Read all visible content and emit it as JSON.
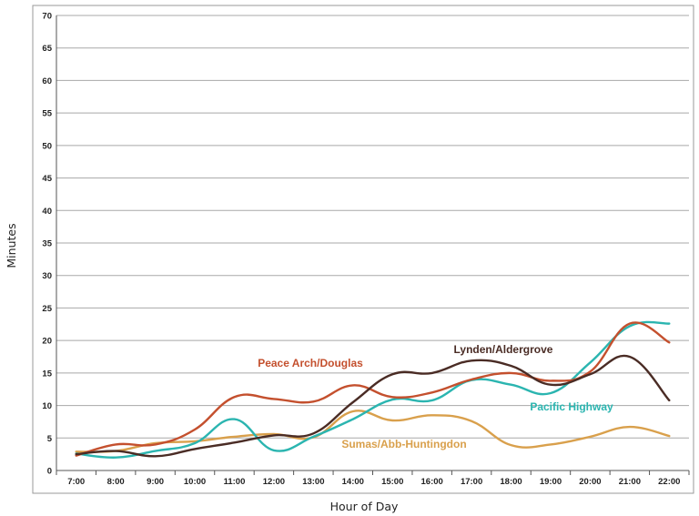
{
  "chart_data": {
    "type": "line",
    "title": "",
    "xlabel": "Hour of Day",
    "ylabel": "Minutes",
    "categories": [
      "7:00",
      "8:00",
      "9:00",
      "10:00",
      "11:00",
      "12:00",
      "13:00",
      "14:00",
      "15:00",
      "16:00",
      "17:00",
      "18:00",
      "19:00",
      "20:00",
      "21:00",
      "22:00"
    ],
    "ylim": [
      0,
      70
    ],
    "yticks": [
      0,
      5,
      10,
      15,
      20,
      25,
      30,
      35,
      40,
      45,
      50,
      55,
      60,
      65,
      70
    ],
    "grid": true,
    "legend": "inline-labels",
    "series": [
      {
        "name": "Peace Arch/Douglas",
        "color": "#c4502e",
        "values": [
          2.3,
          4.0,
          4.0,
          6.3,
          11.3,
          11.0,
          10.6,
          13.1,
          11.3,
          12.0,
          14.0,
          15.0,
          13.8,
          15.2,
          22.6,
          19.7
        ]
      },
      {
        "name": "Lynden/Aldergrove",
        "color": "#4a2c25",
        "values": [
          2.5,
          3.0,
          2.2,
          3.3,
          4.3,
          5.4,
          5.7,
          10.5,
          14.8,
          15.0,
          16.9,
          16.1,
          13.2,
          14.8,
          17.5,
          10.8
        ]
      },
      {
        "name": "Pacific Highway",
        "color": "#2bb5b0",
        "values": [
          2.6,
          2.0,
          3.0,
          4.2,
          7.9,
          3.1,
          5.2,
          7.9,
          10.9,
          10.8,
          13.9,
          13.2,
          11.9,
          16.6,
          22.2,
          22.6
        ]
      },
      {
        "name": "Sumas/Abb-Huntingdon",
        "color": "#d9a04c",
        "values": [
          2.9,
          3.0,
          4.2,
          4.5,
          5.2,
          5.6,
          5.1,
          9.1,
          7.7,
          8.5,
          7.6,
          3.9,
          4.0,
          5.2,
          6.7,
          5.3
        ]
      }
    ]
  }
}
